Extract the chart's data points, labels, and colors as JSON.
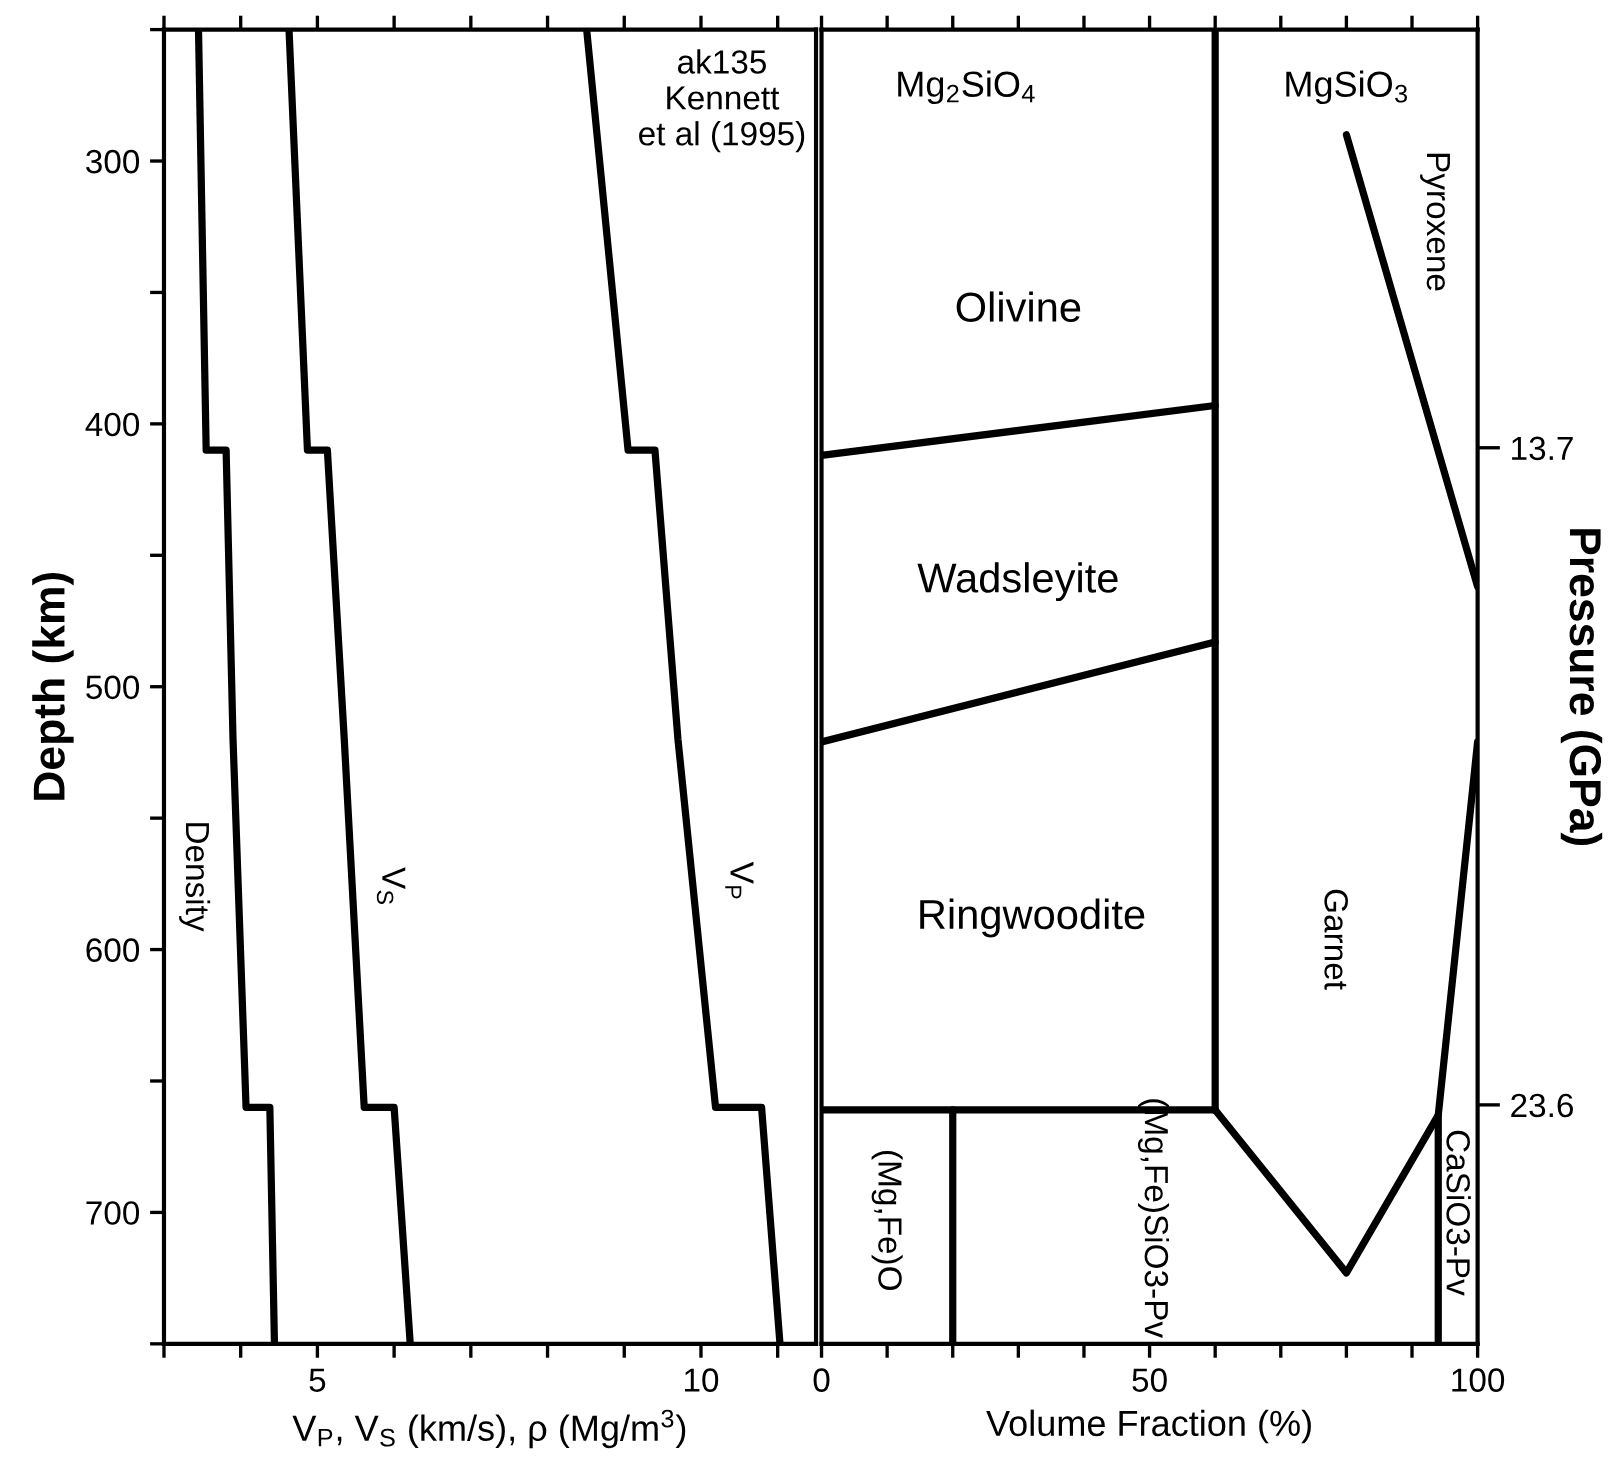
{
  "chart_data": [
    {
      "type": "line",
      "xlabel": "V$_{P}$, V$_{S}$ (km/s), ρ (Mg/m$^{3}$)",
      "ylabel": "Depth (km)",
      "xlim": [
        3,
        11.5
      ],
      "ylim": [
        750,
        250
      ],
      "xticks": [
        {
          "value": 3,
          "label": null
        },
        {
          "value": 4,
          "label": null
        },
        5,
        {
          "value": 6,
          "label": null
        },
        {
          "value": 7,
          "label": null
        },
        {
          "value": 8,
          "label": null
        },
        {
          "value": 9,
          "label": null
        },
        10,
        {
          "value": 11,
          "label": null
        }
      ],
      "yticks": [
        {
          "value": 250,
          "label": null
        },
        300,
        {
          "value": 350,
          "label": null
        },
        400,
        {
          "value": 450,
          "label": null
        },
        500,
        {
          "value": 550,
          "label": null
        },
        600,
        {
          "value": 650,
          "label": null
        },
        700,
        {
          "value": 750,
          "label": null
        }
      ],
      "series": [
        {
          "color": "#000000",
          "x": [
            3.45,
            3.55,
            3.81,
            3.9,
            4.07,
            4.38,
            4.44
          ],
          "values": [
            250,
            410,
            410,
            520,
            660,
            660,
            750
          ]
        },
        {
          "color": "#000000",
          "x": [
            4.63,
            4.87,
            5.13,
            5.35,
            5.61,
            6.0,
            6.21
          ],
          "values": [
            250,
            410,
            410,
            520,
            660,
            660,
            750
          ]
        },
        {
          "color": "#000000",
          "x": [
            8.51,
            9.05,
            9.4,
            9.7,
            10.19,
            10.79,
            11.03
          ],
          "values": [
            250,
            410,
            410,
            520,
            660,
            660,
            750
          ]
        }
      ],
      "annotations": [
        "Density",
        "V$_{S}$",
        "V$_{P}$",
        "ak135\nKennett\net al (1995)"
      ]
    },
    {
      "type": "line",
      "xlabel": "Volume Fraction (%)",
      "y2label": "Pressure (GPa)",
      "xlim": [
        0,
        100
      ],
      "ylim": [
        750,
        250
      ],
      "y2lim": [
        27.2,
        7.4
      ],
      "y2ticks": [
        13.7,
        23.6
      ],
      "xticks": [
        0,
        {
          "value": 10,
          "label": null
        },
        {
          "value": 20,
          "label": null
        },
        {
          "value": 30,
          "label": null
        },
        {
          "value": 40,
          "label": null
        },
        50,
        {
          "value": 60,
          "label": null
        },
        {
          "value": 70,
          "label": null
        },
        {
          "value": 80,
          "label": null
        },
        {
          "value": 90,
          "label": null
        },
        100
      ],
      "series": [
        {
          "color": "#000000",
          "x": [
            60,
            60
          ],
          "values": [
            250,
            661
          ]
        },
        {
          "color": "#000000",
          "x": [
            0,
            60
          ],
          "values": [
            412,
            393
          ]
        },
        {
          "color": "#000000",
          "x": [
            0,
            60
          ],
          "values": [
            521,
            483
          ]
        },
        {
          "color": "#000000",
          "x": [
            0,
            60
          ],
          "values": [
            661,
            661
          ]
        },
        {
          "color": "#000000",
          "x": [
            80,
            100
          ],
          "values": [
            290,
            462
          ]
        },
        {
          "color": "#000000",
          "x": [
            100,
            94,
            94
          ],
          "values": [
            521,
            663,
            750
          ]
        },
        {
          "color": "#000000",
          "x": [
            60,
            80,
            94
          ],
          "values": [
            661,
            723,
            663
          ]
        },
        {
          "color": "#000000",
          "x": [
            20,
            20
          ],
          "values": [
            661,
            750
          ]
        }
      ],
      "annotations": [
        "Mg$_{2}$SiO$_{4}$",
        "MgSiO$_{3}$",
        "Olivine",
        "Wadsleyite",
        "Ringwoodite",
        "Pyroxene",
        "Garnet",
        "(Mg,Fe)O",
        "(Mg,Fe)SiO3-Pv",
        "CaSiO3-Pv"
      ]
    }
  ]
}
